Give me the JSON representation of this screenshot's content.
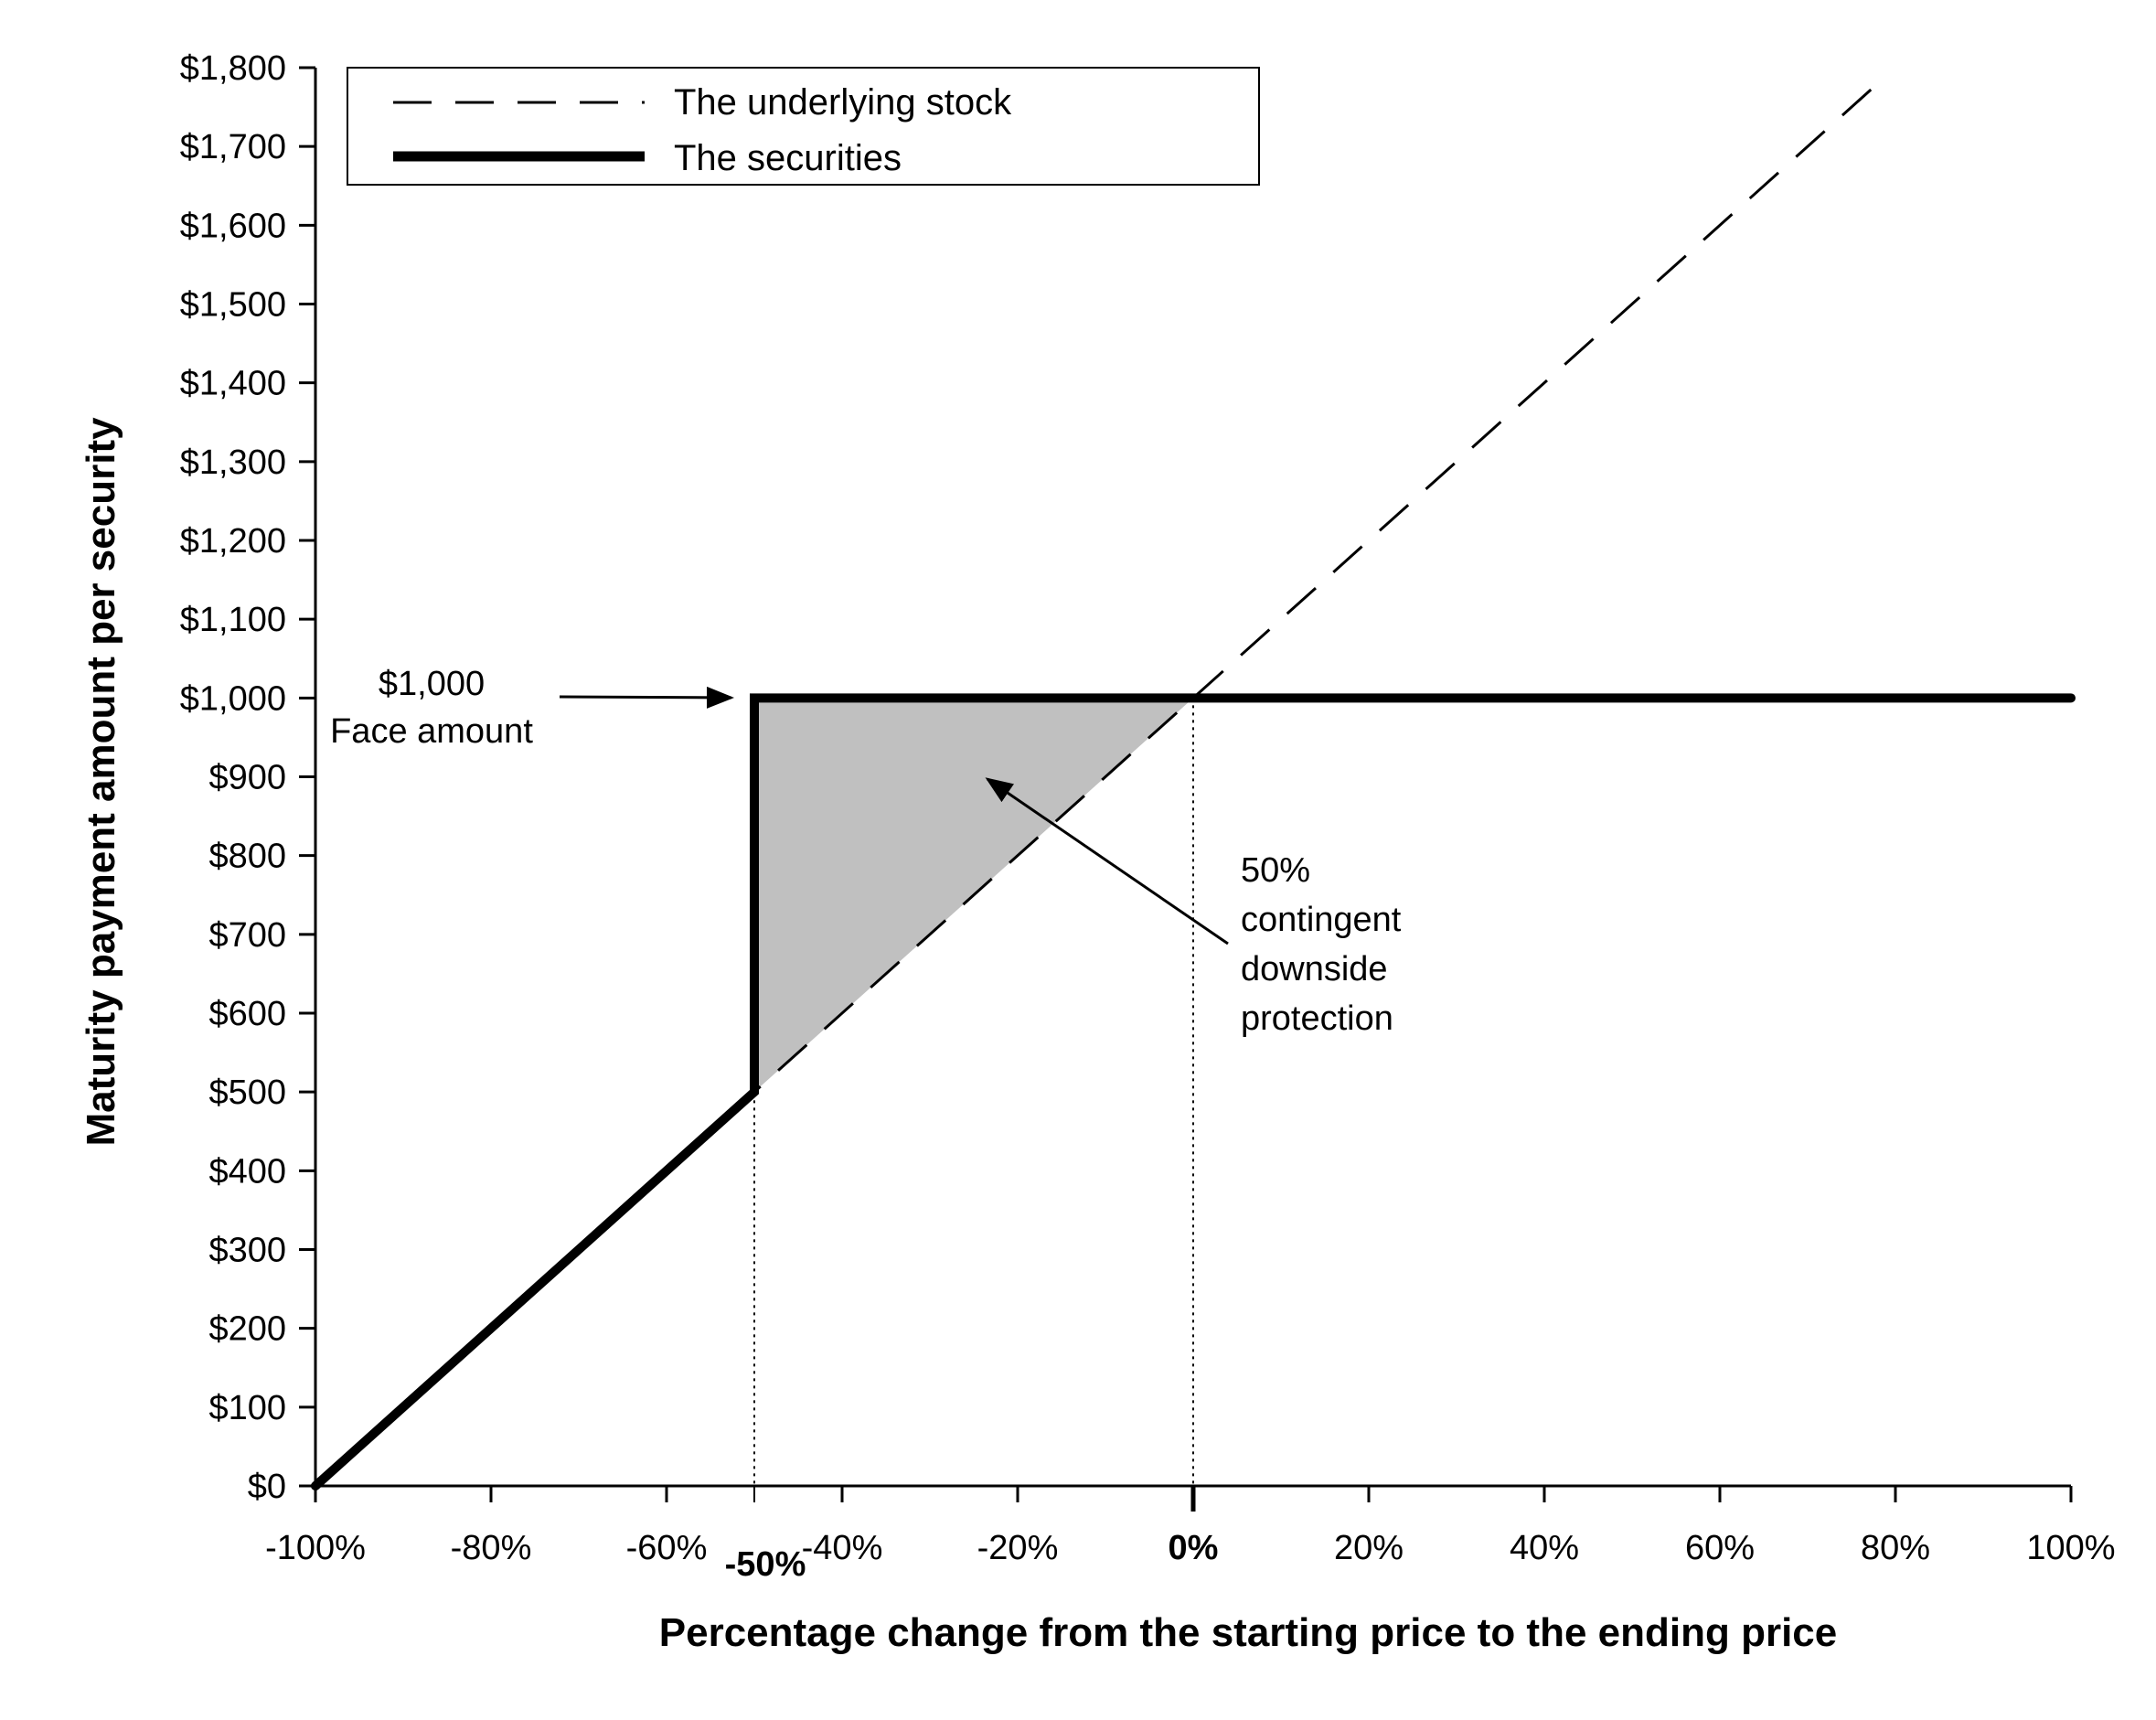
{
  "chart_data": {
    "type": "line",
    "xlabel": "Percentage change from the starting price to the ending price",
    "ylabel": "Maturity payment amount per security",
    "xlim": [
      -100,
      100
    ],
    "ylim": [
      0,
      1800
    ],
    "x_ticks": [
      -100,
      -80,
      -60,
      -40,
      -20,
      0,
      20,
      40,
      60,
      80,
      100
    ],
    "x_tick_labels": [
      "-100%",
      "-80%",
      "-60%",
      "-40%",
      "-20%",
      "0%",
      "20%",
      "40%",
      "60%",
      "80%",
      "100%"
    ],
    "y_ticks": [
      0,
      100,
      200,
      300,
      400,
      500,
      600,
      700,
      800,
      900,
      1000,
      1100,
      1200,
      1300,
      1400,
      1500,
      1600,
      1700,
      1800
    ],
    "y_tick_labels": [
      "$0",
      "$100",
      "$200",
      "$300",
      "$400",
      "$500",
      "$600",
      "$700",
      "$800",
      "$900",
      "$1,000",
      "$1,100",
      "$1,200",
      "$1,300",
      "$1,400",
      "$1,500",
      "$1,600",
      "$1,700",
      "$1,800"
    ],
    "extra_x_label": {
      "x": -50,
      "label": "-50%"
    },
    "reference_lines_x": [
      -50,
      0
    ],
    "legend_position": "top-left",
    "grid": false,
    "series": [
      {
        "name": "The underlying stock",
        "style": "dashed",
        "x": [
          -100,
          78.7
        ],
        "y": [
          0,
          1787
        ]
      },
      {
        "name": "The securities",
        "style": "solid-thick",
        "x": [
          -100,
          -50,
          -50,
          100
        ],
        "y": [
          0,
          500,
          1000,
          1000
        ]
      }
    ],
    "shaded_region": {
      "x": [
        -50,
        -50,
        0
      ],
      "y": [
        500,
        1000,
        1000
      ],
      "color": "#c0c0c0"
    },
    "annotations": [
      {
        "lines": [
          "$1,000",
          "Face amount"
        ],
        "points_to": {
          "x": -50,
          "y": 1000
        }
      },
      {
        "lines": [
          "50%",
          "contingent",
          "downside",
          "protection"
        ],
        "points_to": {
          "x": -24,
          "y": 900
        }
      }
    ]
  }
}
